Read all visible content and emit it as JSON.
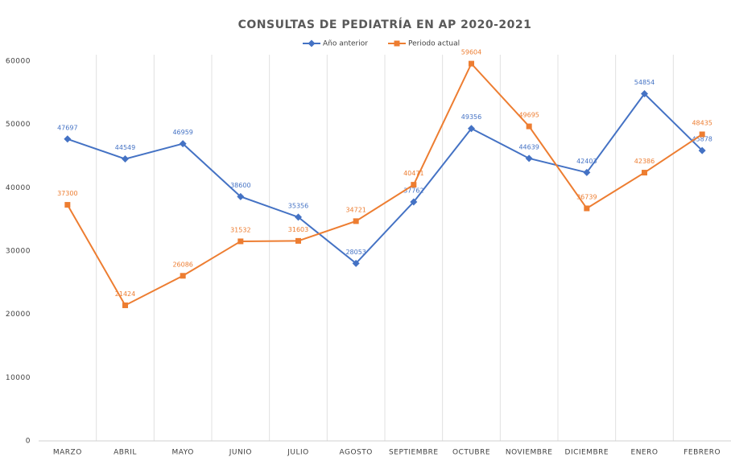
{
  "chart_data": {
    "type": "line",
    "title": "CONSULTAS DE PEDIATRÍA EN AP 2020-2021",
    "categories": [
      "MARZO",
      "ABRIL",
      "MAYO",
      "JUNIO",
      "JULIO",
      "AGOSTO",
      "SEPTIEMBRE",
      "OCTUBRE",
      "NOVIEMBRE",
      "DICIEMBRE",
      "ENERO",
      "FEBRERO"
    ],
    "series": [
      {
        "name": "Año anterior",
        "color": "#4472c4",
        "marker": "diamond",
        "values": [
          47697,
          44549,
          46959,
          38600,
          35356,
          28053,
          37762,
          49356,
          44639,
          42403,
          54854,
          45878
        ]
      },
      {
        "name": "Periodo actual",
        "color": "#ed7d31",
        "marker": "square",
        "values": [
          37300,
          21424,
          26086,
          31532,
          31603,
          34721,
          40471,
          59604,
          49695,
          36739,
          42386,
          48435
        ]
      }
    ],
    "ylim": [
      0,
      60000
    ],
    "yticks": [
      0,
      10000,
      20000,
      30000,
      40000,
      50000,
      60000
    ],
    "legend": "top"
  }
}
